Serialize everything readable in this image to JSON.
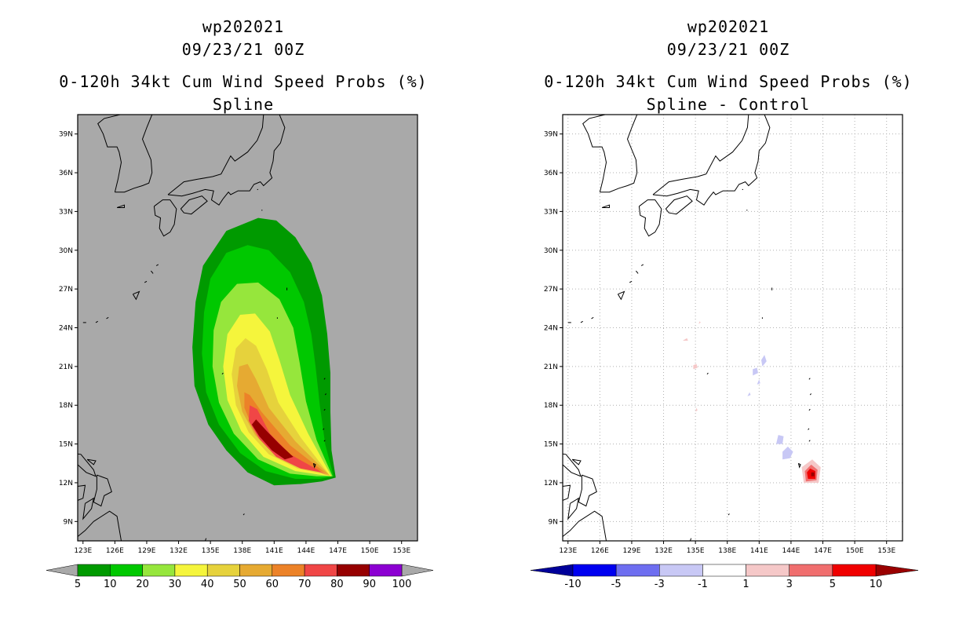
{
  "left_panel": {
    "title_line1": "wp202021",
    "title_line2": "09/23/21 00Z",
    "title_line3": "0-120h 34kt Cum Wind Speed Probs (%)",
    "title_line4": "Spline"
  },
  "right_panel": {
    "title_line1": "wp202021",
    "title_line2": "09/23/21 00Z",
    "title_line3": "0-120h 34kt Cum Wind Speed Probs (%)",
    "title_line4": "Spline - Control"
  },
  "colors": {
    "background_gray": "#a9a9a9",
    "map_line": "#000000",
    "grid_dotted": "#b0b0b0"
  },
  "chart_data": [
    {
      "type": "heatmap",
      "title": "0-120h 34kt Cum Wind Speed Probs (%) Spline",
      "xlabel": "",
      "ylabel": "",
      "xlim": [
        122.5,
        154.5
      ],
      "ylim": [
        7.5,
        40.5
      ],
      "x_ticks": [
        "123E",
        "126E",
        "129E",
        "132E",
        "135E",
        "138E",
        "141E",
        "144E",
        "147E",
        "150E",
        "153E"
      ],
      "x_tick_values": [
        123,
        126,
        129,
        132,
        135,
        138,
        141,
        144,
        147,
        150,
        153
      ],
      "y_ticks": [
        "9N",
        "12N",
        "15N",
        "18N",
        "21N",
        "24N",
        "27N",
        "30N",
        "33N",
        "36N",
        "39N"
      ],
      "y_tick_values": [
        9,
        12,
        15,
        18,
        21,
        24,
        27,
        30,
        33,
        36,
        39
      ],
      "grid": false,
      "contour_levels": [
        5,
        10,
        20,
        30,
        40,
        50,
        60,
        70,
        80,
        90,
        100
      ],
      "contour_colors": [
        "#009a00",
        "#00c800",
        "#96e63c",
        "#f5f53c",
        "#e6d23c",
        "#e6aa32",
        "#ec8228",
        "#f04646",
        "#960000",
        "#8c00d2"
      ],
      "colorbar_labels": [
        "5",
        "10",
        "20",
        "30",
        "40",
        "50",
        "60",
        "70",
        "80",
        "90",
        "100"
      ],
      "peak_location": {
        "lon": 141,
        "lat": 15.5
      },
      "storm_origin": {
        "lon": 146.5,
        "lat": 12.5
      }
    },
    {
      "type": "heatmap",
      "title": "0-120h 34kt Cum Wind Speed Probs (%) Spline - Control",
      "xlabel": "",
      "ylabel": "",
      "xlim": [
        122.5,
        154.5
      ],
      "ylim": [
        7.5,
        40.5
      ],
      "x_ticks": [
        "123E",
        "126E",
        "129E",
        "132E",
        "135E",
        "138E",
        "141E",
        "144E",
        "147E",
        "150E",
        "153E"
      ],
      "x_tick_values": [
        123,
        126,
        129,
        132,
        135,
        138,
        141,
        144,
        147,
        150,
        153
      ],
      "y_ticks": [
        "9N",
        "12N",
        "15N",
        "18N",
        "21N",
        "24N",
        "27N",
        "30N",
        "33N",
        "36N",
        "39N"
      ],
      "y_tick_values": [
        9,
        12,
        15,
        18,
        21,
        24,
        27,
        30,
        33,
        36,
        39
      ],
      "grid": true,
      "contour_levels": [
        -10,
        -5,
        -3,
        -1,
        1,
        3,
        5,
        10
      ],
      "contour_colors": [
        "#00009a",
        "#0000f0",
        "#6e6ef0",
        "#c8c8f5",
        "#ffffff",
        "#f5c8c8",
        "#f06e6e",
        "#f00000",
        "#9a0000"
      ],
      "colorbar_labels": [
        "-10",
        "-5",
        "-3",
        "-1",
        "1",
        "3",
        "5",
        "10"
      ],
      "positive_max_location": {
        "lon": 146,
        "lat": 12.5
      },
      "negative_patches": [
        {
          "lon": 144.5,
          "lat": 14.0
        },
        {
          "lon": 143.5,
          "lat": 15.0
        },
        {
          "lon": 140.5,
          "lat": 20.5
        },
        {
          "lon": 141.5,
          "lat": 21.2
        }
      ]
    }
  ]
}
